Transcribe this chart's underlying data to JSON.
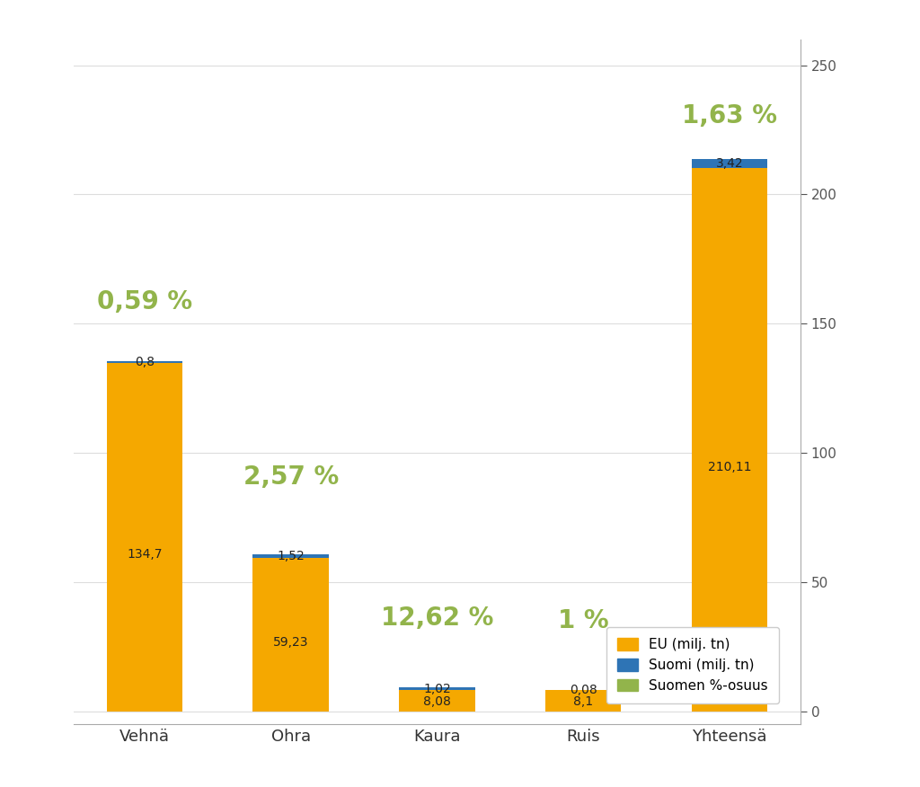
{
  "categories": [
    "Vehnä",
    "Ohra",
    "Kaura",
    "Ruis",
    "Yhteensä"
  ],
  "eu_values": [
    134.7,
    59.23,
    8.08,
    8.1,
    210.11
  ],
  "suomi_values": [
    0.8,
    1.52,
    1.02,
    0.08,
    3.42
  ],
  "pct_labels": [
    "0,59 %",
    "2,57 %",
    "12,62 %",
    "1 %",
    "1,63 %"
  ],
  "eu_label_values": [
    "134,7",
    "59,23",
    "8,08",
    "8,1",
    "210,11"
  ],
  "suomi_label_values": [
    "0,8",
    "1,52",
    "1,02",
    "0,08",
    "3,42"
  ],
  "eu_color": "#F5A800",
  "suomi_color": "#2E74B5",
  "pct_color": "#92B44B",
  "label_color_dark": "#222222",
  "background_color": "#FFFFFF",
  "ylim_min": -5,
  "ylim_max": 260,
  "yticks": [
    0,
    50,
    100,
    150,
    200,
    250
  ],
  "bar_width": 0.52,
  "legend_labels": [
    "EU (milj. tn)",
    "Suomi (milj. tn)",
    "Suomen %-osuus"
  ],
  "figsize": [
    10.24,
    8.76
  ],
  "dpi": 100,
  "pct_fontsize": 20,
  "pct_y_offsets": [
    18,
    25,
    22,
    22,
    12
  ],
  "value_fontsize": 10,
  "xtick_fontsize": 13,
  "ytick_fontsize": 11
}
